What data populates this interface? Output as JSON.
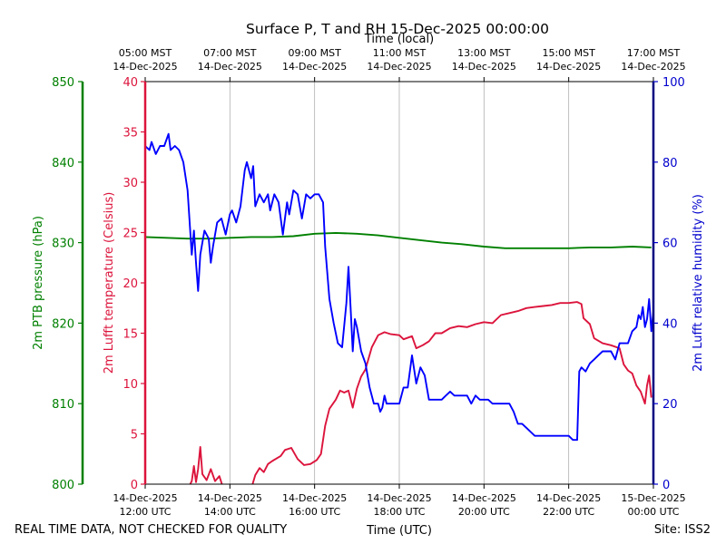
{
  "chart_data": {
    "type": "line",
    "title": "Surface P, T and RH 15-Dec-2025 00:00:00",
    "top_axis": {
      "label": "Time (local)",
      "ticks": [
        {
          "hour": 12,
          "time": "05:00 MST",
          "date": "14-Dec-2025"
        },
        {
          "hour": 14,
          "time": "07:00 MST",
          "date": "14-Dec-2025"
        },
        {
          "hour": 16,
          "time": "09:00 MST",
          "date": "14-Dec-2025"
        },
        {
          "hour": 18,
          "time": "11:00 MST",
          "date": "14-Dec-2025"
        },
        {
          "hour": 20,
          "time": "13:00 MST",
          "date": "14-Dec-2025"
        },
        {
          "hour": 22,
          "time": "15:00 MST",
          "date": "14-Dec-2025"
        },
        {
          "hour": 24,
          "time": "17:00 MST",
          "date": "14-Dec-2025"
        }
      ]
    },
    "x_axis": {
      "label": "Time (UTC)",
      "range_hours": [
        12,
        24
      ],
      "ticks": [
        {
          "hour": 12,
          "date": "14-Dec-2025",
          "time": "12:00 UTC"
        },
        {
          "hour": 14,
          "date": "14-Dec-2025",
          "time": "14:00 UTC"
        },
        {
          "hour": 16,
          "date": "14-Dec-2025",
          "time": "16:00 UTC"
        },
        {
          "hour": 18,
          "date": "14-Dec-2025",
          "time": "18:00 UTC"
        },
        {
          "hour": 20,
          "date": "14-Dec-2025",
          "time": "20:00 UTC"
        },
        {
          "hour": 22,
          "date": "14-Dec-2025",
          "time": "22:00 UTC"
        },
        {
          "hour": 24,
          "date": "15-Dec-2025",
          "time": "00:00 UTC"
        }
      ]
    },
    "y_axes": {
      "pressure": {
        "label": "2m PTB pressure (hPa)",
        "range": [
          800,
          850
        ],
        "ticks": [
          800,
          810,
          820,
          830,
          840,
          850
        ],
        "color": "#008000"
      },
      "temperature": {
        "label": "2m Lufft temperature (Celsius)",
        "range": [
          0,
          40
        ],
        "ticks": [
          0,
          5,
          10,
          15,
          20,
          25,
          30,
          35,
          40
        ],
        "color": "#dc143c"
      },
      "humidity": {
        "label": "2m Lufft relative humidity (%)",
        "range": [
          0,
          100
        ],
        "ticks": [
          0,
          20,
          40,
          60,
          80,
          100
        ],
        "color": "#0000cd"
      }
    },
    "grid": "vertical at x ticks",
    "series": [
      {
        "axis": "pressure",
        "color": "#008000",
        "points": [
          [
            12.0,
            830.7
          ],
          [
            12.5,
            830.6
          ],
          [
            13.0,
            830.5
          ],
          [
            13.5,
            830.5
          ],
          [
            14.0,
            830.6
          ],
          [
            14.5,
            830.7
          ],
          [
            15.0,
            830.7
          ],
          [
            15.5,
            830.8
          ],
          [
            16.0,
            831.1
          ],
          [
            16.5,
            831.2
          ],
          [
            17.0,
            831.1
          ],
          [
            17.5,
            830.9
          ],
          [
            18.0,
            830.6
          ],
          [
            18.5,
            830.3
          ],
          [
            19.0,
            830.0
          ],
          [
            19.5,
            829.8
          ],
          [
            20.0,
            829.5
          ],
          [
            20.5,
            829.3
          ],
          [
            21.0,
            829.3
          ],
          [
            21.5,
            829.3
          ],
          [
            22.0,
            829.3
          ],
          [
            22.5,
            829.4
          ],
          [
            23.0,
            829.4
          ],
          [
            23.5,
            829.5
          ],
          [
            23.95,
            829.4
          ]
        ]
      },
      {
        "axis": "temperature",
        "color": "#dc143c",
        "points": [
          [
            13.0,
            -0.5
          ],
          [
            13.1,
            0.3
          ],
          [
            13.15,
            1.8
          ],
          [
            13.2,
            0.2
          ],
          [
            13.25,
            1.5
          ],
          [
            13.3,
            3.7
          ],
          [
            13.35,
            1.0
          ],
          [
            13.45,
            0.4
          ],
          [
            13.55,
            1.5
          ],
          [
            13.65,
            0.3
          ],
          [
            13.75,
            0.8
          ],
          [
            13.85,
            -0.5
          ],
          [
            14.5,
            -0.5
          ],
          [
            14.6,
            0.9
          ],
          [
            14.7,
            1.6
          ],
          [
            14.8,
            1.2
          ],
          [
            14.9,
            2.0
          ],
          [
            15.0,
            2.3
          ],
          [
            15.2,
            2.8
          ],
          [
            15.3,
            3.4
          ],
          [
            15.45,
            3.6
          ],
          [
            15.6,
            2.5
          ],
          [
            15.75,
            1.9
          ],
          [
            15.9,
            2.0
          ],
          [
            16.05,
            2.4
          ],
          [
            16.15,
            3.0
          ],
          [
            16.25,
            5.8
          ],
          [
            16.35,
            7.5
          ],
          [
            16.5,
            8.4
          ],
          [
            16.6,
            9.3
          ],
          [
            16.7,
            9.1
          ],
          [
            16.8,
            9.3
          ],
          [
            16.9,
            7.6
          ],
          [
            17.0,
            9.5
          ],
          [
            17.1,
            10.7
          ],
          [
            17.2,
            11.4
          ],
          [
            17.35,
            13.6
          ],
          [
            17.5,
            14.8
          ],
          [
            17.65,
            15.1
          ],
          [
            17.8,
            14.9
          ],
          [
            18.0,
            14.8
          ],
          [
            18.1,
            14.4
          ],
          [
            18.3,
            14.7
          ],
          [
            18.4,
            13.5
          ],
          [
            18.55,
            13.8
          ],
          [
            18.7,
            14.2
          ],
          [
            18.85,
            15.0
          ],
          [
            19.0,
            15.0
          ],
          [
            19.2,
            15.5
          ],
          [
            19.4,
            15.7
          ],
          [
            19.6,
            15.6
          ],
          [
            19.8,
            15.9
          ],
          [
            20.0,
            16.1
          ],
          [
            20.2,
            16.0
          ],
          [
            20.4,
            16.8
          ],
          [
            20.6,
            17.0
          ],
          [
            20.8,
            17.2
          ],
          [
            21.0,
            17.5
          ],
          [
            21.2,
            17.6
          ],
          [
            21.4,
            17.7
          ],
          [
            21.6,
            17.8
          ],
          [
            21.8,
            18.0
          ],
          [
            22.0,
            18.0
          ],
          [
            22.2,
            18.1
          ],
          [
            22.3,
            17.9
          ],
          [
            22.35,
            16.5
          ],
          [
            22.5,
            15.9
          ],
          [
            22.6,
            14.5
          ],
          [
            22.8,
            14.0
          ],
          [
            23.0,
            13.8
          ],
          [
            23.2,
            13.5
          ],
          [
            23.3,
            11.9
          ],
          [
            23.4,
            11.3
          ],
          [
            23.5,
            11.0
          ],
          [
            23.6,
            9.8
          ],
          [
            23.7,
            9.2
          ],
          [
            23.8,
            8.0
          ],
          [
            23.85,
            9.8
          ],
          [
            23.9,
            10.8
          ],
          [
            23.95,
            8.6
          ]
        ]
      },
      {
        "axis": "humidity",
        "color": "#0000ff",
        "points": [
          [
            12.0,
            84
          ],
          [
            12.1,
            83
          ],
          [
            12.15,
            85
          ],
          [
            12.25,
            82
          ],
          [
            12.35,
            84
          ],
          [
            12.45,
            84
          ],
          [
            12.55,
            87
          ],
          [
            12.6,
            83
          ],
          [
            12.7,
            84
          ],
          [
            12.8,
            83
          ],
          [
            12.9,
            80
          ],
          [
            13.0,
            73
          ],
          [
            13.05,
            65
          ],
          [
            13.1,
            57
          ],
          [
            13.15,
            63
          ],
          [
            13.2,
            55
          ],
          [
            13.25,
            48
          ],
          [
            13.3,
            57
          ],
          [
            13.4,
            63
          ],
          [
            13.5,
            61
          ],
          [
            13.55,
            55
          ],
          [
            13.6,
            59
          ],
          [
            13.7,
            65
          ],
          [
            13.8,
            66
          ],
          [
            13.9,
            62
          ],
          [
            14.0,
            67
          ],
          [
            14.05,
            68
          ],
          [
            14.15,
            65
          ],
          [
            14.25,
            69
          ],
          [
            14.35,
            78
          ],
          [
            14.4,
            80
          ],
          [
            14.5,
            76
          ],
          [
            14.55,
            79
          ],
          [
            14.6,
            69
          ],
          [
            14.7,
            72
          ],
          [
            14.8,
            70
          ],
          [
            14.9,
            72
          ],
          [
            14.95,
            68
          ],
          [
            15.05,
            72
          ],
          [
            15.15,
            70
          ],
          [
            15.25,
            62
          ],
          [
            15.35,
            70
          ],
          [
            15.4,
            67
          ],
          [
            15.5,
            73
          ],
          [
            15.6,
            72
          ],
          [
            15.7,
            66
          ],
          [
            15.8,
            72
          ],
          [
            15.9,
            71
          ],
          [
            16.0,
            72
          ],
          [
            16.1,
            72
          ],
          [
            16.2,
            70
          ],
          [
            16.25,
            59
          ],
          [
            16.35,
            46
          ],
          [
            16.45,
            40
          ],
          [
            16.55,
            35
          ],
          [
            16.65,
            34
          ],
          [
            16.75,
            45
          ],
          [
            16.8,
            54
          ],
          [
            16.85,
            44
          ],
          [
            16.9,
            33
          ],
          [
            16.95,
            41
          ],
          [
            17.0,
            39
          ],
          [
            17.1,
            33
          ],
          [
            17.2,
            30
          ],
          [
            17.3,
            24
          ],
          [
            17.4,
            20
          ],
          [
            17.5,
            20
          ],
          [
            17.55,
            18
          ],
          [
            17.6,
            19
          ],
          [
            17.65,
            22
          ],
          [
            17.7,
            20
          ],
          [
            17.8,
            20
          ],
          [
            17.9,
            20
          ],
          [
            18.0,
            20
          ],
          [
            18.1,
            24
          ],
          [
            18.2,
            24
          ],
          [
            18.3,
            32
          ],
          [
            18.4,
            25
          ],
          [
            18.5,
            29
          ],
          [
            18.6,
            27
          ],
          [
            18.7,
            21
          ],
          [
            18.8,
            21
          ],
          [
            18.9,
            21
          ],
          [
            19.0,
            21
          ],
          [
            19.1,
            22
          ],
          [
            19.2,
            23
          ],
          [
            19.3,
            22
          ],
          [
            19.5,
            22
          ],
          [
            19.6,
            22
          ],
          [
            19.7,
            20
          ],
          [
            19.8,
            22
          ],
          [
            19.9,
            21
          ],
          [
            20.0,
            21
          ],
          [
            20.1,
            21
          ],
          [
            20.2,
            20
          ],
          [
            20.4,
            20
          ],
          [
            20.5,
            20
          ],
          [
            20.6,
            20
          ],
          [
            20.7,
            18
          ],
          [
            20.8,
            15
          ],
          [
            20.9,
            15
          ],
          [
            21.0,
            14
          ],
          [
            21.1,
            13
          ],
          [
            21.2,
            12
          ],
          [
            21.3,
            12
          ],
          [
            21.4,
            12
          ],
          [
            21.5,
            12
          ],
          [
            21.6,
            12
          ],
          [
            21.7,
            12
          ],
          [
            21.8,
            12
          ],
          [
            22.0,
            12
          ],
          [
            22.1,
            11
          ],
          [
            22.2,
            11
          ],
          [
            22.25,
            28
          ],
          [
            22.3,
            29
          ],
          [
            22.4,
            28
          ],
          [
            22.5,
            30
          ],
          [
            22.6,
            31
          ],
          [
            22.7,
            32
          ],
          [
            22.8,
            33
          ],
          [
            22.9,
            33
          ],
          [
            23.0,
            33
          ],
          [
            23.1,
            31
          ],
          [
            23.2,
            35
          ],
          [
            23.3,
            35
          ],
          [
            23.4,
            35
          ],
          [
            23.5,
            38
          ],
          [
            23.6,
            39
          ],
          [
            23.65,
            42
          ],
          [
            23.7,
            41
          ],
          [
            23.75,
            44
          ],
          [
            23.8,
            39
          ],
          [
            23.85,
            41
          ],
          [
            23.9,
            46
          ],
          [
            23.95,
            38
          ],
          [
            24.0,
            43
          ]
        ]
      }
    ]
  },
  "footer": {
    "disclaimer": "REAL TIME DATA, NOT CHECKED FOR QUALITY",
    "site": "Site: ISS2"
  }
}
